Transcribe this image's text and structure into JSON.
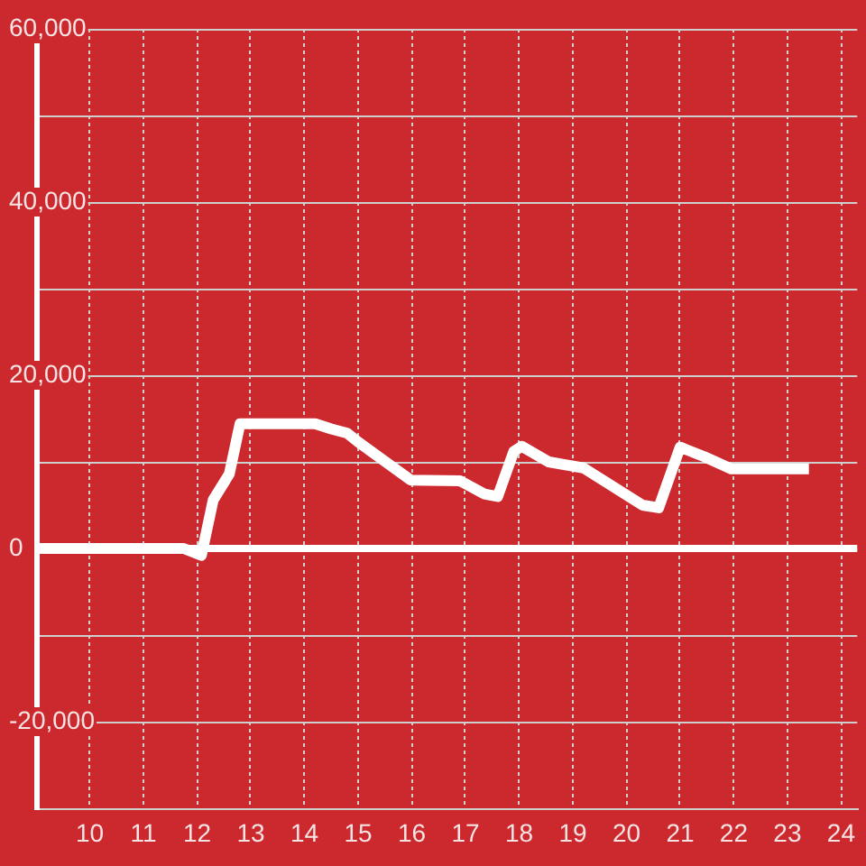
{
  "chart_data": {
    "type": "line",
    "x": [
      9,
      11.75,
      12.08,
      12.3,
      12.6,
      12.8,
      14.2,
      14.5,
      14.8,
      15.0,
      15.98,
      16.9,
      17.35,
      17.6,
      17.9,
      18.05,
      18.55,
      19.2,
      20.3,
      20.6,
      21.0,
      21.45,
      21.95,
      23.4
    ],
    "series": [
      {
        "color": "#ffffff",
        "values": [
          0,
          0,
          -800,
          5600,
          8600,
          14400,
          14400,
          13800,
          13300,
          12300,
          7900,
          7800,
          6300,
          6000,
          11200,
          11800,
          10000,
          9300,
          5000,
          4700,
          11700,
          10600,
          9200,
          9200
        ]
      }
    ],
    "xlim": [
      9,
      24.3
    ],
    "xticks": [
      10,
      11,
      12,
      13,
      14,
      15,
      16,
      17,
      18,
      19,
      20,
      21,
      22,
      23,
      24
    ],
    "ylim": [
      -30000,
      60000
    ],
    "yticks": [
      {
        "value": -30000,
        "label": null
      },
      {
        "value": -20000,
        "label": "-20,000"
      },
      {
        "value": -10000,
        "label": null
      },
      0,
      {
        "value": 10000,
        "label": null
      },
      {
        "value": 20000,
        "label": "20,000"
      },
      {
        "value": 30000,
        "label": null
      },
      {
        "value": 40000,
        "label": "40,000"
      },
      {
        "value": 50000,
        "label": null
      },
      {
        "value": 60000,
        "label": "60,000"
      }
    ],
    "grid": true,
    "line_style": "solid",
    "ref_lines": [
      {
        "axis": "y",
        "value": 0,
        "color": "#ffffff"
      }
    ]
  }
}
